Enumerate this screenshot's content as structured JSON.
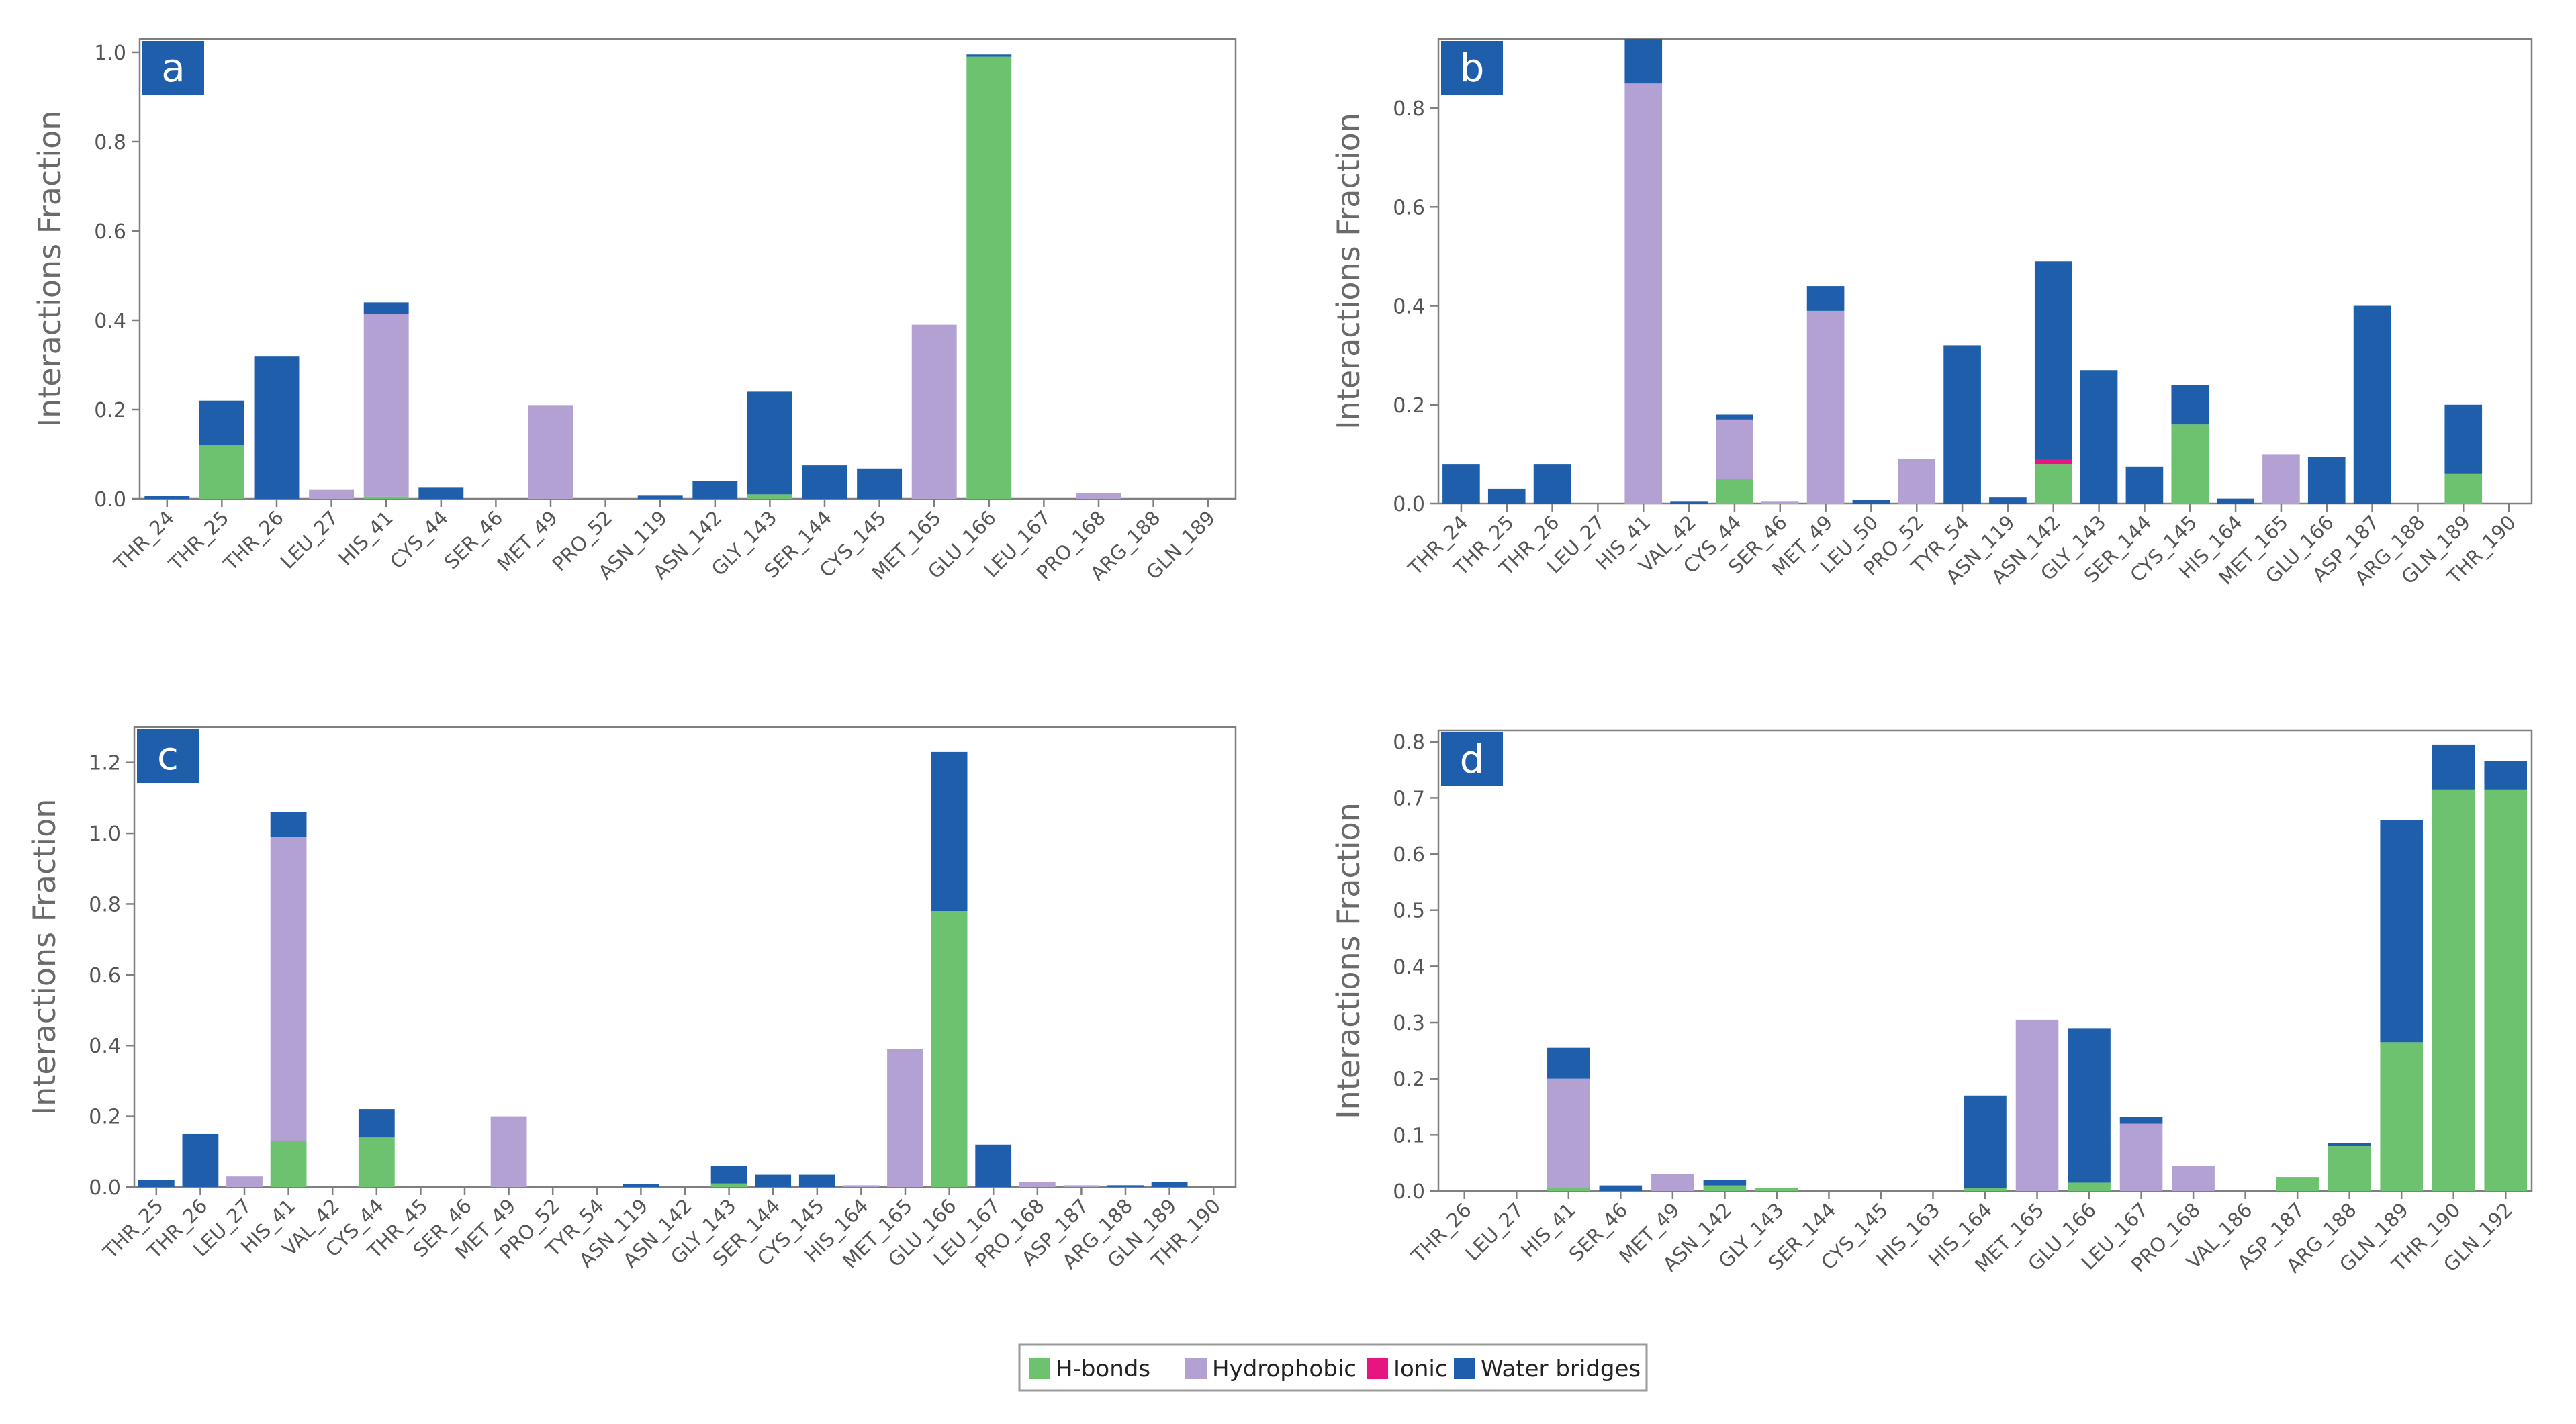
{
  "colors": {
    "hbonds": "#6cc26f",
    "hydrophobic": "#b3a1d3",
    "ionic": "#e6157f",
    "water": "#1f5eab",
    "panel_label_bg": "#1f5eab",
    "axis": "#7f7f7f",
    "text": "#555555"
  },
  "legend": [
    {
      "key": "hbonds",
      "label": "H-bonds"
    },
    {
      "key": "hydrophobic",
      "label": "Hydrophobic"
    },
    {
      "key": "ionic",
      "label": "Ionic"
    },
    {
      "key": "water",
      "label": "Water bridges"
    }
  ],
  "chart_data": [
    {
      "panel": "a",
      "type": "bar",
      "stacked": true,
      "ylabel": "Interactions Fraction",
      "ylim": [
        0,
        1.03
      ],
      "yticks": [
        0.0,
        0.2,
        0.4,
        0.6,
        0.8,
        1.0
      ],
      "ytick_labels": [
        "0.0",
        "0.2",
        "0.4",
        "0.6",
        "0.8",
        "1.0"
      ],
      "categories": [
        "THR_24",
        "THR_25",
        "THR_26",
        "LEU_27",
        "HIS_41",
        "CYS_44",
        "SER_46",
        "MET_49",
        "PRO_52",
        "ASN_119",
        "ASN_142",
        "GLY_143",
        "SER_144",
        "CYS_145",
        "MET_165",
        "GLU_166",
        "LEU_167",
        "PRO_168",
        "ARG_188",
        "GLN_189"
      ],
      "series": [
        {
          "name": "H-bonds",
          "key": "hbonds",
          "values": [
            0,
            0.12,
            0,
            0,
            0.005,
            0,
            0,
            0,
            0,
            0,
            0,
            0.01,
            0,
            0,
            0,
            0.99,
            0,
            0,
            0,
            0
          ]
        },
        {
          "name": "Hydrophobic",
          "key": "hydrophobic",
          "values": [
            0,
            0,
            0,
            0.02,
            0.41,
            0,
            0,
            0.21,
            0,
            0,
            0,
            0,
            0,
            0,
            0.39,
            0,
            0,
            0.012,
            0,
            0
          ]
        },
        {
          "name": "Ionic",
          "key": "ionic",
          "values": [
            0,
            0,
            0,
            0,
            0,
            0,
            0,
            0,
            0,
            0,
            0,
            0,
            0,
            0,
            0,
            0,
            0,
            0,
            0,
            0
          ]
        },
        {
          "name": "Water bridges",
          "key": "water",
          "values": [
            0.006,
            0.1,
            0.32,
            0,
            0.025,
            0.025,
            0,
            0,
            0,
            0.007,
            0.04,
            0.23,
            0.075,
            0.068,
            0,
            0.005,
            0,
            0,
            0,
            0
          ]
        }
      ]
    },
    {
      "panel": "b",
      "type": "bar",
      "stacked": true,
      "ylabel": "Interactions Fraction",
      "ylim": [
        0,
        0.94
      ],
      "yticks": [
        0.0,
        0.2,
        0.4,
        0.6,
        0.8
      ],
      "ytick_labels": [
        "0.0",
        "0.2",
        "0.4",
        "0.6",
        "0.8"
      ],
      "categories": [
        "THR_24",
        "THR_25",
        "THR_26",
        "LEU_27",
        "HIS_41",
        "VAL_42",
        "CYS_44",
        "SER_46",
        "MET_49",
        "LEU_50",
        "PRO_52",
        "TYR_54",
        "ASN_119",
        "ASN_142",
        "GLY_143",
        "SER_144",
        "CYS_145",
        "HIS_164",
        "MET_165",
        "GLU_166",
        "ASP_187",
        "ARG_188",
        "GLN_189",
        "THR_190"
      ],
      "series": [
        {
          "name": "H-bonds",
          "key": "hbonds",
          "values": [
            0,
            0,
            0,
            0,
            0,
            0,
            0.05,
            0,
            0,
            0,
            0,
            0,
            0,
            0.08,
            0,
            0,
            0.16,
            0,
            0,
            0,
            0,
            0,
            0.06,
            0
          ]
        },
        {
          "name": "Hydrophobic",
          "key": "hydrophobic",
          "values": [
            0,
            0,
            0,
            0,
            0.85,
            0,
            0.12,
            0.005,
            0.39,
            0,
            0.09,
            0,
            0,
            0,
            0,
            0,
            0,
            0,
            0.1,
            0,
            0,
            0,
            0,
            0
          ]
        },
        {
          "name": "Ionic",
          "key": "ionic",
          "values": [
            0,
            0,
            0,
            0,
            0,
            0,
            0,
            0,
            0,
            0,
            0,
            0,
            0,
            0.01,
            0,
            0,
            0,
            0,
            0,
            0,
            0,
            0,
            0,
            0
          ]
        },
        {
          "name": "Water bridges",
          "key": "water",
          "values": [
            0.08,
            0.03,
            0.08,
            0,
            0.09,
            0.005,
            0.01,
            0,
            0.05,
            0.008,
            0,
            0.32,
            0.012,
            0.4,
            0.27,
            0.075,
            0.08,
            0.01,
            0,
            0.095,
            0.4,
            0,
            0.14,
            0
          ]
        }
      ]
    },
    {
      "panel": "c",
      "type": "bar",
      "stacked": true,
      "ylabel": "Interactions Fraction",
      "ylim": [
        0,
        1.3
      ],
      "yticks": [
        0.0,
        0.2,
        0.4,
        0.6,
        0.8,
        1.0,
        1.2
      ],
      "ytick_labels": [
        "0.0",
        "0.2",
        "0.4",
        "0.6",
        "0.8",
        "1.0",
        "1.2"
      ],
      "categories": [
        "THR_25",
        "THR_26",
        "LEU_27",
        "HIS_41",
        "VAL_42",
        "CYS_44",
        "THR_45",
        "SER_46",
        "MET_49",
        "PRO_52",
        "TYR_54",
        "ASN_119",
        "ASN_142",
        "GLY_143",
        "SER_144",
        "CYS_145",
        "HIS_164",
        "MET_165",
        "GLU_166",
        "LEU_167",
        "PRO_168",
        "ASP_187",
        "ARG_188",
        "GLN_189",
        "THR_190"
      ],
      "series": [
        {
          "name": "H-bonds",
          "key": "hbonds",
          "values": [
            0,
            0,
            0,
            0.13,
            0,
            0.14,
            0,
            0,
            0,
            0,
            0,
            0,
            0,
            0.01,
            0,
            0,
            0,
            0,
            0.78,
            0,
            0,
            0,
            0,
            0,
            0
          ]
        },
        {
          "name": "Hydrophobic",
          "key": "hydrophobic",
          "values": [
            0,
            0,
            0.03,
            0.86,
            0,
            0,
            0,
            0,
            0.2,
            0,
            0,
            0,
            0,
            0,
            0,
            0,
            0.005,
            0.39,
            0,
            0,
            0.015,
            0.005,
            0,
            0,
            0
          ]
        },
        {
          "name": "Ionic",
          "key": "ionic",
          "values": [
            0,
            0,
            0,
            0,
            0,
            0,
            0,
            0,
            0,
            0,
            0,
            0,
            0,
            0,
            0,
            0,
            0,
            0,
            0,
            0,
            0,
            0,
            0,
            0,
            0
          ]
        },
        {
          "name": "Water bridges",
          "key": "water",
          "values": [
            0.02,
            0.15,
            0,
            0.07,
            0,
            0.08,
            0,
            0,
            0,
            0,
            0,
            0.008,
            0,
            0.05,
            0.035,
            0.035,
            0,
            0,
            0.45,
            0.12,
            0,
            0,
            0.005,
            0.015,
            0
          ]
        }
      ]
    },
    {
      "panel": "d",
      "type": "bar",
      "stacked": true,
      "ylabel": "Interactions Fraction",
      "ylim": [
        0,
        0.82
      ],
      "yticks": [
        0.0,
        0.1,
        0.2,
        0.3,
        0.4,
        0.5,
        0.6,
        0.7,
        0.8
      ],
      "ytick_labels": [
        "0.0",
        "0.1",
        "0.2",
        "0.3",
        "0.4",
        "0.5",
        "0.6",
        "0.7",
        "0.8"
      ],
      "categories": [
        "THR_26",
        "LEU_27",
        "HIS_41",
        "SER_46",
        "MET_49",
        "ASN_142",
        "GLY_143",
        "SER_144",
        "CYS_145",
        "HIS_163",
        "HIS_164",
        "MET_165",
        "GLU_166",
        "LEU_167",
        "PRO_168",
        "VAL_186",
        "ASP_187",
        "ARG_188",
        "GLN_189",
        "THR_190",
        "GLN_192"
      ],
      "series": [
        {
          "name": "H-bonds",
          "key": "hbonds",
          "values": [
            0,
            0,
            0.005,
            0,
            0,
            0.01,
            0.005,
            0,
            0,
            0,
            0.005,
            0,
            0.015,
            0,
            0,
            0,
            0.025,
            0.08,
            0.265,
            0.715,
            0.715
          ]
        },
        {
          "name": "Hydrophobic",
          "key": "hydrophobic",
          "values": [
            0,
            0,
            0.195,
            0,
            0.03,
            0,
            0,
            0,
            0,
            0,
            0,
            0.305,
            0,
            0.12,
            0.045,
            0,
            0,
            0,
            0,
            0,
            0
          ]
        },
        {
          "name": "Ionic",
          "key": "ionic",
          "values": [
            0,
            0,
            0,
            0,
            0,
            0,
            0,
            0,
            0,
            0,
            0,
            0,
            0,
            0,
            0,
            0,
            0,
            0,
            0,
            0,
            0
          ]
        },
        {
          "name": "Water bridges",
          "key": "water",
          "values": [
            0,
            0,
            0.055,
            0.01,
            0,
            0.01,
            0,
            0,
            0,
            0,
            0.165,
            0,
            0.275,
            0.012,
            0,
            0,
            0,
            0.006,
            0.395,
            0.08,
            0.05
          ]
        }
      ]
    }
  ]
}
